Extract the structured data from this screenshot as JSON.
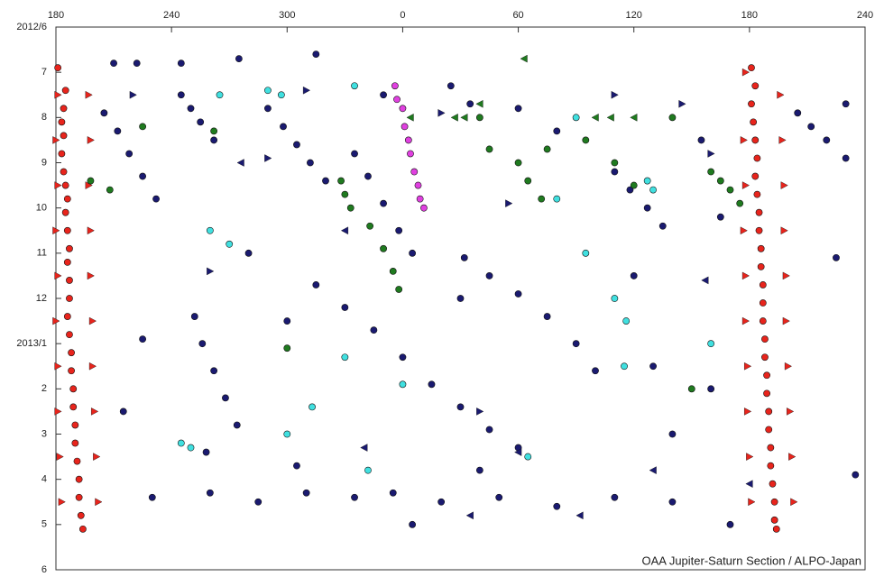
{
  "chart_data": {
    "type": "scatter",
    "annotation": "OAA Jupiter-Saturn Section / ALPO-Japan",
    "xlim": [
      180,
      600
    ],
    "xticks": [
      180,
      240,
      300,
      {
        "value": 360,
        "label": "0"
      },
      {
        "value": 420,
        "label": "60"
      },
      {
        "value": 480,
        "label": "120"
      },
      {
        "value": 540,
        "label": "180"
      },
      {
        "value": 600,
        "label": "240"
      }
    ],
    "ylim": [
      0,
      12
    ],
    "y_inverted": true,
    "yticks": [
      {
        "value": 0,
        "label": "2012/6"
      },
      {
        "value": 1,
        "label": "7"
      },
      {
        "value": 2,
        "label": "8"
      },
      {
        "value": 3,
        "label": "9"
      },
      {
        "value": 4,
        "label": "10"
      },
      {
        "value": 5,
        "label": "11"
      },
      {
        "value": 6,
        "label": "12"
      },
      {
        "value": 7,
        "label": "2013/1"
      },
      {
        "value": 8,
        "label": "2"
      },
      {
        "value": 9,
        "label": "3"
      },
      {
        "value": 10,
        "label": "4"
      },
      {
        "value": 11,
        "label": "5"
      },
      {
        "value": 12,
        "label": "6"
      }
    ],
    "grid": false,
    "series": [
      {
        "color": "#e8241c",
        "marker": "circle",
        "x": [
          181,
          185,
          184,
          183,
          184,
          183,
          184,
          185,
          186,
          185,
          186,
          187,
          186,
          187,
          187,
          186,
          187,
          188,
          188,
          189,
          189,
          190,
          190,
          191,
          192,
          192,
          193,
          194,
          541,
          543,
          541,
          542,
          543,
          544,
          543,
          544,
          545,
          545,
          546,
          546,
          547,
          547,
          547,
          548,
          548,
          549,
          549,
          550,
          550,
          551,
          551,
          552,
          553,
          553,
          554
        ],
        "y": [
          0.9,
          1.4,
          1.8,
          2.1,
          2.4,
          2.8,
          3.2,
          3.5,
          3.8,
          4.1,
          4.5,
          4.9,
          5.2,
          5.6,
          6.0,
          6.4,
          6.8,
          7.2,
          7.6,
          8.0,
          8.4,
          8.8,
          9.2,
          9.6,
          10.0,
          10.4,
          10.8,
          11.1,
          0.9,
          1.3,
          1.7,
          2.1,
          2.5,
          2.9,
          3.3,
          3.7,
          4.1,
          4.5,
          4.9,
          5.3,
          5.7,
          6.1,
          6.5,
          6.9,
          7.3,
          7.7,
          8.1,
          8.5,
          8.9,
          9.3,
          9.7,
          10.1,
          10.5,
          10.9,
          11.1
        ]
      },
      {
        "color": "#e8241c",
        "marker": "triangle-right",
        "x": [
          181,
          197,
          180,
          198,
          181,
          197,
          180,
          198,
          181,
          198,
          180,
          199,
          181,
          199,
          181,
          200,
          182,
          201,
          183,
          202,
          538,
          556,
          537,
          557,
          538,
          558,
          537,
          558,
          538,
          559,
          538,
          559,
          539,
          560,
          539,
          561,
          540,
          562,
          541,
          563
        ],
        "y": [
          1.5,
          1.5,
          2.5,
          2.5,
          3.5,
          3.5,
          4.5,
          4.5,
          5.5,
          5.5,
          6.5,
          6.5,
          7.5,
          7.5,
          8.5,
          8.5,
          9.5,
          9.5,
          10.5,
          10.5,
          1.0,
          1.5,
          2.5,
          2.5,
          3.5,
          3.5,
          4.5,
          4.5,
          5.5,
          5.5,
          6.5,
          6.5,
          7.5,
          7.5,
          8.5,
          8.5,
          9.5,
          9.5,
          10.5,
          10.5
        ]
      },
      {
        "color": "#1a1a70",
        "marker": "circle",
        "x": [
          205,
          212,
          218,
          225,
          232,
          245,
          250,
          255,
          262,
          290,
          298,
          305,
          312,
          320,
          315,
          330,
          345,
          360,
          375,
          390,
          405,
          420,
          335,
          342,
          350,
          358,
          365,
          392,
          405,
          420,
          435,
          450,
          460,
          470,
          478,
          487,
          495,
          565,
          572,
          580,
          590,
          252,
          256,
          262,
          268,
          274,
          230,
          260,
          285,
          310,
          335,
          355,
          380,
          410,
          440,
          470,
          500,
          530,
          210,
          222,
          245,
          275,
          315,
          350,
          385,
          395,
          420,
          515,
          525,
          280,
          300,
          390,
          400,
          490,
          500,
          520,
          215,
          225,
          590,
          595,
          585,
          440,
          365,
          305,
          258,
          480
        ],
        "y": [
          1.9,
          2.3,
          2.8,
          3.3,
          3.8,
          1.5,
          1.8,
          2.1,
          2.5,
          1.8,
          2.2,
          2.6,
          3.0,
          3.4,
          5.7,
          6.2,
          6.7,
          7.3,
          7.9,
          8.4,
          8.9,
          9.3,
          2.8,
          3.3,
          3.9,
          4.5,
          5.0,
          5.1,
          5.5,
          5.9,
          6.4,
          7.0,
          7.6,
          3.2,
          3.6,
          4.0,
          4.4,
          1.9,
          2.2,
          2.5,
          2.9,
          6.4,
          7.0,
          7.6,
          8.2,
          8.8,
          10.4,
          10.3,
          10.5,
          10.3,
          10.4,
          10.3,
          10.5,
          10.4,
          10.6,
          10.4,
          10.5,
          11.0,
          0.8,
          0.8,
          0.8,
          0.7,
          0.6,
          1.5,
          1.3,
          1.7,
          1.8,
          2.5,
          4.2,
          5.0,
          6.5,
          6.0,
          9.8,
          7.5,
          9.0,
          8.0,
          8.5,
          6.9,
          1.7,
          9.9,
          5.1,
          2.3,
          11.0,
          9.7,
          9.4,
          5.5
        ]
      },
      {
        "color": "#40e0e0",
        "marker": "circle",
        "x": [
          265,
          290,
          297,
          335,
          450,
          487,
          490,
          455,
          470,
          476,
          475,
          260,
          270,
          300,
          313,
          245,
          250,
          342,
          425,
          440,
          520,
          330,
          360
        ],
        "y": [
          1.5,
          1.4,
          1.5,
          1.3,
          2.0,
          3.4,
          3.6,
          5.0,
          6.0,
          6.5,
          7.5,
          4.5,
          4.8,
          9.0,
          8.4,
          9.2,
          9.3,
          9.8,
          9.5,
          3.8,
          7.0,
          7.3,
          7.9
        ]
      },
      {
        "color": "#1f7a1f",
        "marker": "circle",
        "x": [
          328,
          330,
          333,
          343,
          350,
          355,
          358,
          400,
          405,
          420,
          425,
          432,
          435,
          455,
          470,
          480,
          500,
          520,
          525,
          530,
          535,
          262,
          208,
          300,
          510,
          225,
          198
        ],
        "y": [
          3.4,
          3.7,
          4.0,
          4.4,
          4.9,
          5.4,
          5.8,
          2.0,
          2.7,
          3.0,
          3.4,
          3.8,
          2.7,
          2.5,
          3.0,
          3.5,
          2.0,
          3.2,
          3.4,
          3.6,
          3.9,
          2.3,
          3.6,
          7.1,
          8.0,
          2.2,
          3.4
        ]
      },
      {
        "color": "#e040e0",
        "marker": "circle",
        "x": [
          356,
          357,
          360,
          361,
          363,
          364,
          366,
          368,
          369,
          371
        ],
        "y": [
          1.3,
          1.6,
          1.8,
          2.2,
          2.5,
          2.8,
          3.2,
          3.5,
          3.8,
          4.0
        ]
      },
      {
        "color": "#1a1a70",
        "marker": "triangle-right",
        "x": [
          310,
          380,
          415,
          470,
          505,
          220,
          290,
          400,
          520,
          260
        ],
        "y": [
          1.4,
          1.9,
          3.9,
          1.5,
          1.7,
          1.5,
          2.9,
          8.5,
          2.8,
          5.4
        ]
      },
      {
        "color": "#1a1a70",
        "marker": "triangle-left",
        "x": [
          276,
          330,
          395,
          420,
          452,
          490,
          517,
          540,
          340
        ],
        "y": [
          3.0,
          4.5,
          10.8,
          9.4,
          10.8,
          9.8,
          5.6,
          10.1,
          9.3
        ]
      },
      {
        "color": "#1f7a1f",
        "marker": "triangle-left",
        "x": [
          387,
          392,
          400,
          460,
          468,
          480,
          364,
          423
        ],
        "y": [
          2.0,
          2.0,
          1.7,
          2.0,
          2.0,
          2.0,
          2.0,
          0.7
        ]
      }
    ]
  }
}
